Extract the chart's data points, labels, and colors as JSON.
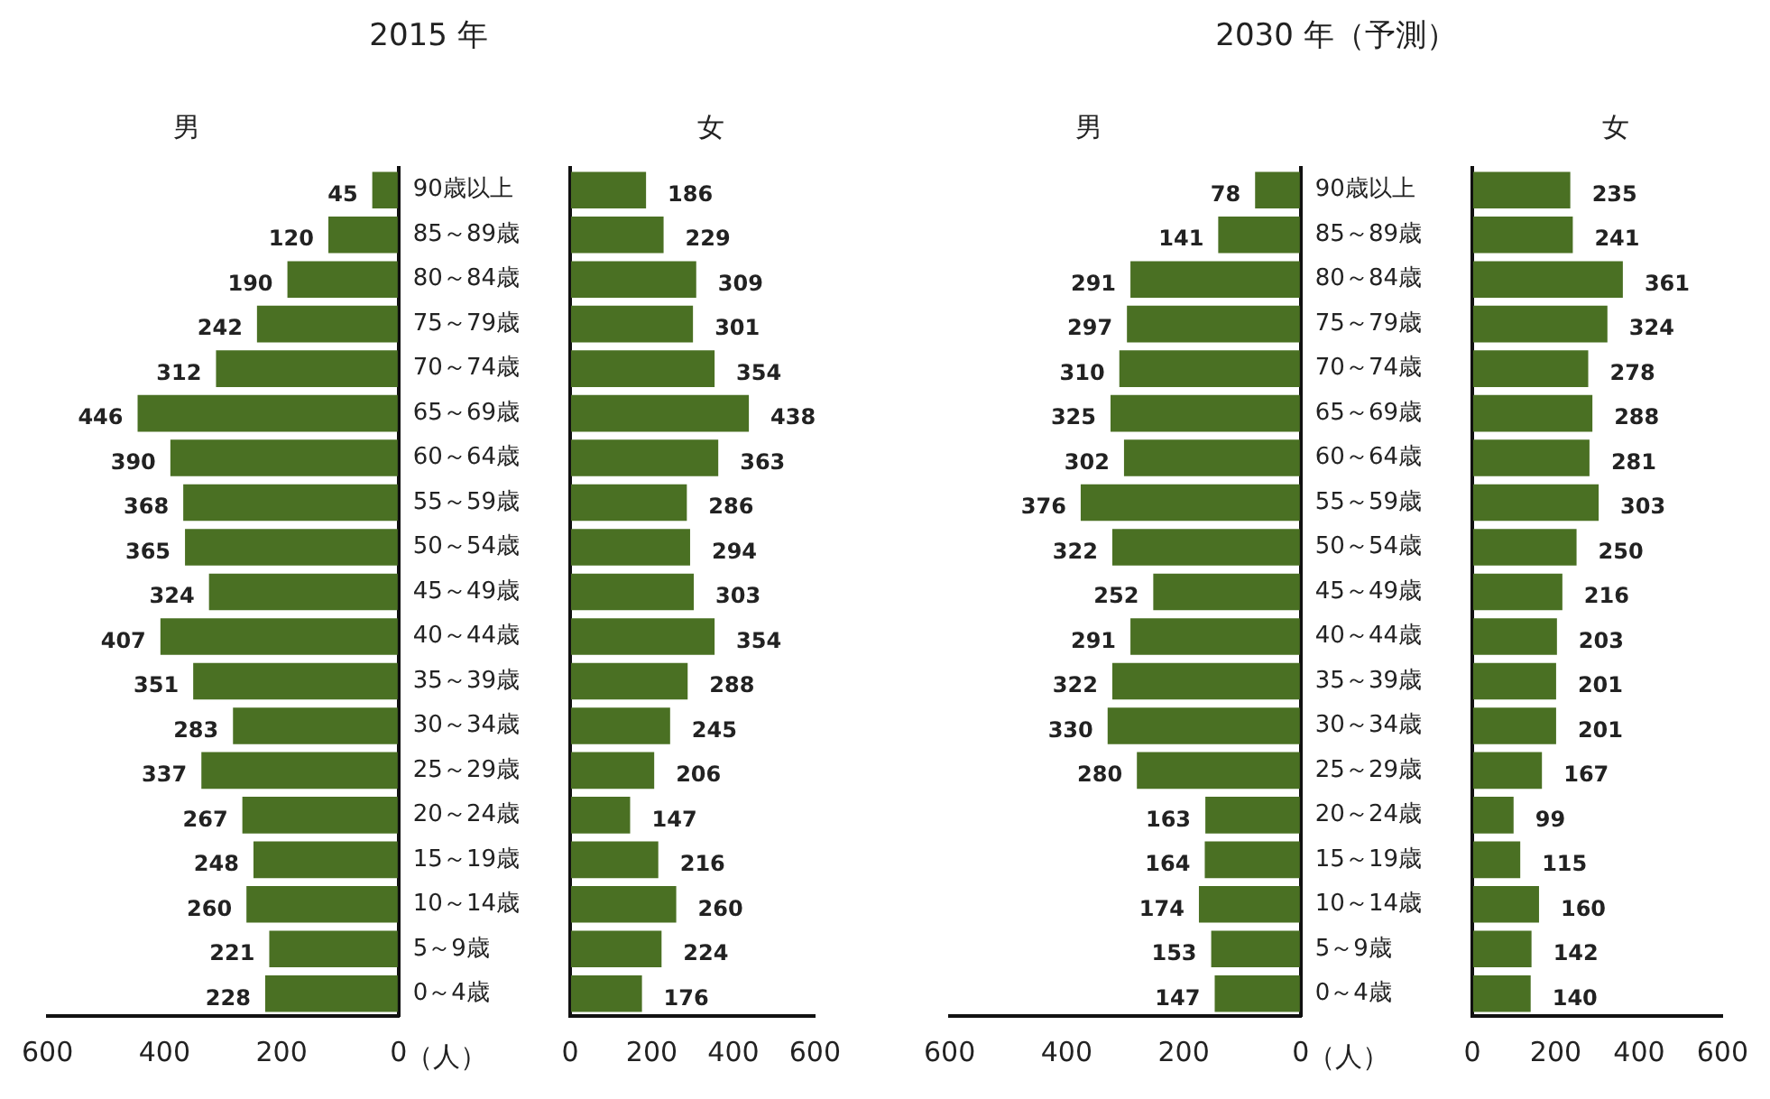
{
  "chart_data": [
    {
      "type": "bar",
      "orientation": "horizontal",
      "title": "2015 年",
      "xlabel": "（人）",
      "categories": [
        "90歳以上",
        "85～89歳",
        "80～84歳",
        "75～79歳",
        "70～74歳",
        "65～69歳",
        "60～64歳",
        "55～59歳",
        "50～54歳",
        "45～49歳",
        "40～44歳",
        "35～39歳",
        "30～34歳",
        "25～29歳",
        "20～24歳",
        "15～19歳",
        "10～14歳",
        "5～9歳",
        "0～4歳"
      ],
      "series": [
        {
          "name": "男",
          "color": "#4a7023",
          "values": [
            45,
            120,
            190,
            242,
            312,
            446,
            390,
            368,
            365,
            324,
            407,
            351,
            283,
            337,
            267,
            248,
            260,
            221,
            228
          ]
        }
      ],
      "xlim": [
        600,
        0
      ],
      "xticks": [
        600,
        400,
        200,
        0
      ],
      "data_labels": true,
      "grid": false,
      "legend": false
    },
    {
      "type": "bar",
      "orientation": "horizontal",
      "categories": [
        null,
        null,
        null,
        null,
        null,
        null,
        null,
        null,
        null,
        null,
        null,
        null,
        null,
        null,
        null,
        null,
        null,
        null,
        null
      ],
      "series": [
        {
          "name": "女",
          "color": "#4a7023",
          "values": [
            186,
            229,
            309,
            301,
            354,
            438,
            363,
            286,
            294,
            303,
            354,
            288,
            245,
            206,
            147,
            216,
            260,
            224,
            176
          ]
        }
      ],
      "xlim": [
        0,
        600
      ],
      "xticks": [
        0,
        200,
        400,
        600
      ],
      "data_labels": true,
      "grid": false,
      "legend": false
    },
    {
      "type": "bar",
      "orientation": "horizontal",
      "title": "2030 年（予測）",
      "xlabel": "（人）",
      "categories": [
        "90歳以上",
        "85～89歳",
        "80～84歳",
        "75～79歳",
        "70～74歳",
        "65～69歳",
        "60～64歳",
        "55～59歳",
        "50～54歳",
        "45～49歳",
        "40～44歳",
        "35～39歳",
        "30～34歳",
        "25～29歳",
        "20～24歳",
        "15～19歳",
        "10～14歳",
        "5～9歳",
        "0～4歳"
      ],
      "series": [
        {
          "name": "男",
          "color": "#4a7023",
          "values": [
            78,
            141,
            291,
            297,
            310,
            325,
            302,
            376,
            322,
            252,
            291,
            322,
            330,
            280,
            163,
            164,
            174,
            153,
            147
          ]
        }
      ],
      "xlim": [
        600,
        0
      ],
      "xticks": [
        600,
        400,
        200,
        0
      ],
      "data_labels": true,
      "grid": false,
      "legend": false
    },
    {
      "type": "bar",
      "orientation": "horizontal",
      "categories": [
        null,
        null,
        null,
        null,
        null,
        null,
        null,
        null,
        null,
        null,
        null,
        null,
        null,
        null,
        null,
        null,
        null,
        null,
        null
      ],
      "series": [
        {
          "name": "女",
          "color": "#4a7023",
          "values": [
            235,
            241,
            361,
            324,
            278,
            288,
            281,
            303,
            250,
            216,
            203,
            201,
            201,
            167,
            99,
            115,
            160,
            142,
            140
          ]
        }
      ],
      "xlim": [
        0,
        600
      ],
      "xticks": [
        0,
        200,
        400,
        600
      ],
      "data_labels": true,
      "grid": false,
      "legend": false
    }
  ]
}
